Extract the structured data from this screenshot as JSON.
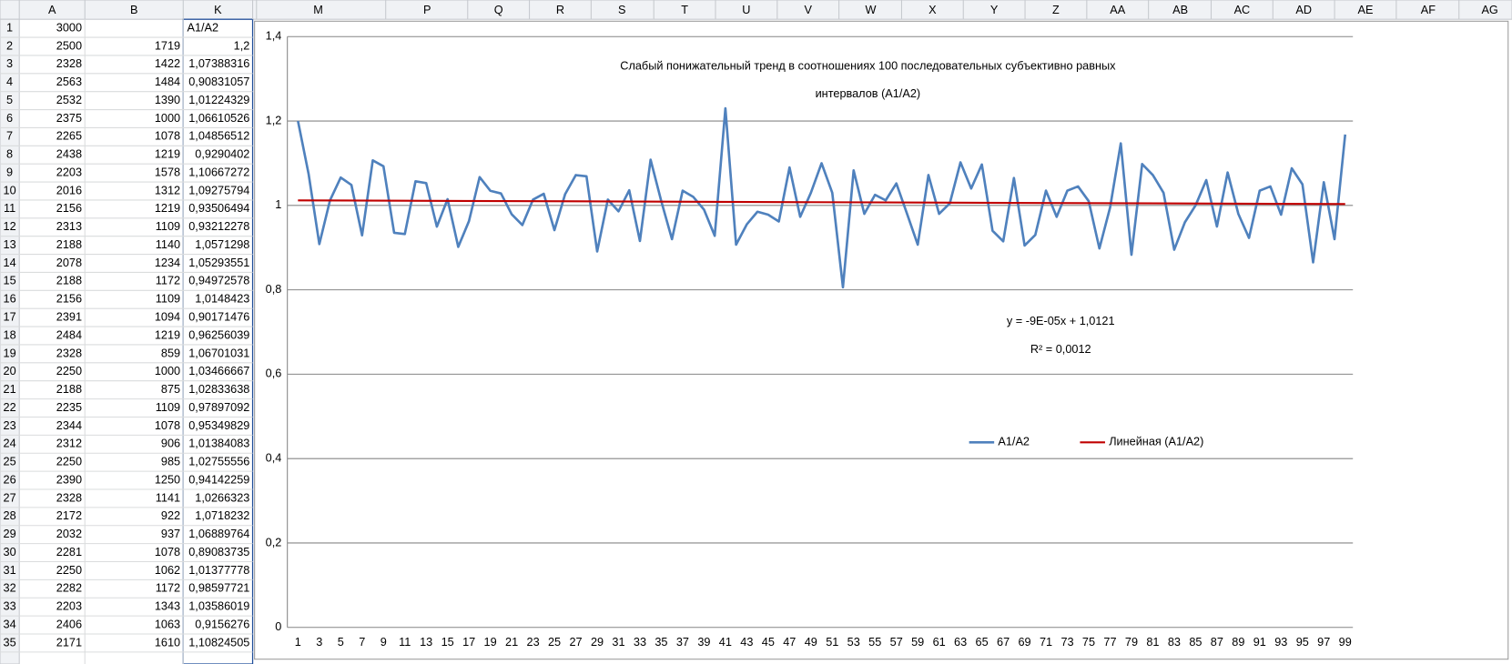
{
  "sheet": {
    "columns": [
      "A",
      "B",
      "K",
      "M",
      "P",
      "Q",
      "R",
      "S",
      "T",
      "U",
      "V",
      "W",
      "X",
      "Y",
      "Z",
      "AA",
      "AB",
      "AC",
      "AD",
      "AE",
      "AF",
      "AG"
    ],
    "rows": [
      [
        "1",
        "3000",
        null,
        "A1/A2"
      ],
      [
        "2",
        "2500",
        "1719",
        "1,2"
      ],
      [
        "3",
        "2328",
        "1422",
        "1,07388316"
      ],
      [
        "4",
        "2563",
        "1484",
        "0,90831057"
      ],
      [
        "5",
        "2532",
        "1390",
        "1,01224329"
      ],
      [
        "6",
        "2375",
        "1000",
        "1,06610526"
      ],
      [
        "7",
        "2265",
        "1078",
        "1,04856512"
      ],
      [
        "8",
        "2438",
        "1219",
        "0,9290402"
      ],
      [
        "9",
        "2203",
        "1578",
        "1,10667272"
      ],
      [
        "10",
        "2016",
        "1312",
        "1,09275794"
      ],
      [
        "11",
        "2156",
        "1219",
        "0,93506494"
      ],
      [
        "12",
        "2313",
        "1109",
        "0,93212278"
      ],
      [
        "13",
        "2188",
        "1140",
        "1,0571298"
      ],
      [
        "14",
        "2078",
        "1234",
        "1,05293551"
      ],
      [
        "15",
        "2188",
        "1172",
        "0,94972578"
      ],
      [
        "16",
        "2156",
        "1109",
        "1,0148423"
      ],
      [
        "17",
        "2391",
        "1094",
        "0,90171476"
      ],
      [
        "18",
        "2484",
        "1219",
        "0,96256039"
      ],
      [
        "19",
        "2328",
        "859",
        "1,06701031"
      ],
      [
        "20",
        "2250",
        "1000",
        "1,03466667"
      ],
      [
        "21",
        "2188",
        "875",
        "1,02833638"
      ],
      [
        "22",
        "2235",
        "1109",
        "0,97897092"
      ],
      [
        "23",
        "2344",
        "1078",
        "0,95349829"
      ],
      [
        "24",
        "2312",
        "906",
        "1,01384083"
      ],
      [
        "25",
        "2250",
        "985",
        "1,02755556"
      ],
      [
        "26",
        "2390",
        "1250",
        "0,94142259"
      ],
      [
        "27",
        "2328",
        "1141",
        "1,0266323"
      ],
      [
        "28",
        "2172",
        "922",
        "1,0718232"
      ],
      [
        "29",
        "2032",
        "937",
        "1,06889764"
      ],
      [
        "30",
        "2281",
        "1078",
        "0,89083735"
      ],
      [
        "31",
        "2250",
        "1062",
        "1,01377778"
      ],
      [
        "32",
        "2282",
        "1172",
        "0,98597721"
      ],
      [
        "33",
        "2203",
        "1343",
        "1,03586019"
      ],
      [
        "34",
        "2406",
        "1063",
        "0,9156276"
      ],
      [
        "35",
        "2171",
        "1610",
        "1,10824505"
      ]
    ]
  },
  "chart_data": {
    "type": "line",
    "title": [
      "Слабый понижательный тренд в соотношениях 100  последовательных субъективно равных",
      "интервалов (A1/A2)"
    ],
    "annotations": [
      "y = -9E-05x + 1,0121",
      "R² = 0,0012"
    ],
    "categories": [
      1,
      null,
      3,
      null,
      5,
      null,
      7,
      null,
      9,
      null,
      11,
      null,
      13,
      null,
      15,
      null,
      17,
      null,
      19,
      null,
      21,
      null,
      23,
      null,
      25,
      null,
      27,
      null,
      29,
      null,
      31,
      null,
      33,
      null,
      35,
      null,
      37,
      null,
      39,
      null,
      41,
      null,
      43,
      null,
      45,
      null,
      47,
      null,
      49,
      null,
      51,
      null,
      53,
      null,
      55,
      null,
      57,
      null,
      59,
      null,
      61,
      null,
      63,
      null,
      65,
      null,
      67,
      null,
      69,
      null,
      71,
      null,
      73,
      null,
      75,
      null,
      77,
      null,
      79,
      null,
      81,
      null,
      83,
      null,
      85,
      null,
      87,
      null,
      89,
      null,
      91,
      null,
      93,
      null,
      95,
      null,
      97,
      null,
      99
    ],
    "series": [
      {
        "name": "A1/A2",
        "color": "#4f81bd",
        "values": [
          1.2,
          1.07388316,
          0.90831057,
          1.01224329,
          1.06610526,
          1.04856512,
          0.9290402,
          1.10667272,
          1.09275794,
          0.93506494,
          0.93212278,
          1.0571298,
          1.05293551,
          0.94972578,
          1.0148423,
          0.90171476,
          0.96256039,
          1.06701031,
          1.03466667,
          1.02833638,
          0.97897092,
          0.95349829,
          1.01384083,
          1.02755556,
          0.94142259,
          1.0266323,
          1.0718232,
          1.06889764,
          0.89083735,
          1.01377778,
          0.98597721,
          1.03586019,
          0.9156276,
          1.10824505,
          1.01,
          0.92,
          1.035,
          1.02,
          0.99,
          0.928,
          1.23,
          0.907,
          0.955,
          0.985,
          0.978,
          0.962,
          1.09,
          0.973,
          1.03,
          1.1,
          1.03,
          0.806,
          1.083,
          0.98,
          1.025,
          1.012,
          1.052,
          0.98,
          0.907,
          1.072,
          0.98,
          1.005,
          1.102,
          1.04,
          1.097,
          0.94,
          0.915,
          1.065,
          0.905,
          0.93,
          1.035,
          0.973,
          1.035,
          1.045,
          1.01,
          0.898,
          0.995,
          1.147,
          0.883,
          1.098,
          1.072,
          1.03,
          0.895,
          0.96,
          1.0,
          1.06,
          0.95,
          1.078,
          0.98,
          0.923,
          1.035,
          1.045,
          0.978,
          1.088,
          1.05,
          0.865,
          1.055,
          0.92,
          1.168
        ]
      },
      {
        "name": "Линейная (A1/A2)",
        "color": "#c00000",
        "x": [
          1,
          99
        ],
        "values": [
          1.012,
          1.0032
        ]
      }
    ],
    "ylim": [
      0,
      1.4
    ],
    "yticks": [
      0,
      {
        "value": 0.2,
        "label": "0,2"
      },
      {
        "value": 0.4,
        "label": "0,4"
      },
      {
        "value": 0.6,
        "label": "0,6"
      },
      {
        "value": 0.8,
        "label": "0,8"
      },
      1,
      {
        "value": 1.2,
        "label": "1,2"
      },
      {
        "value": 1.4,
        "label": "1,4"
      }
    ],
    "grid": true,
    "title_color": "#d02020"
  }
}
